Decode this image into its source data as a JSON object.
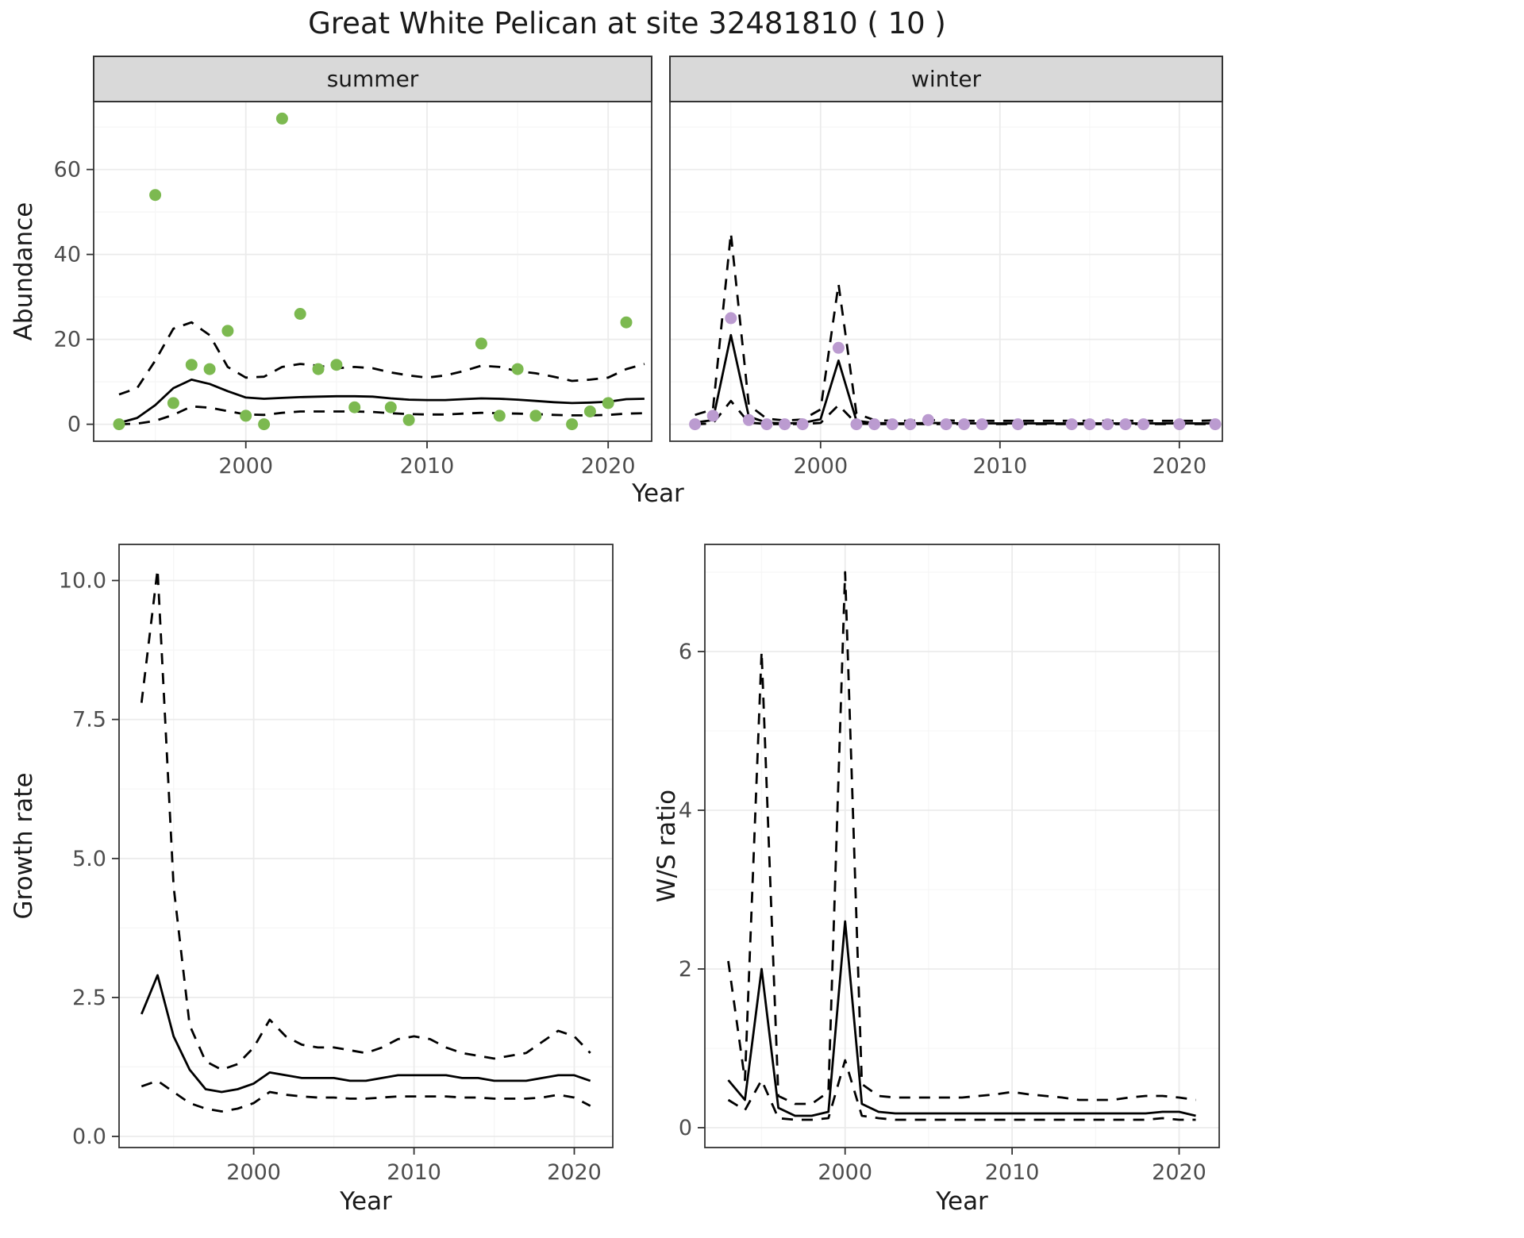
{
  "title": "Great White Pelican at site 32481810 ( 10 )",
  "colors": {
    "summer_point": "#7CB950",
    "winter_point": "#BB9BD0",
    "line": "#000000",
    "strip_bg": "#D9D9D9",
    "grid_major": "#EBEBEB",
    "grid_minor": "#F6F6F6",
    "panel_border": "#333333",
    "tick_label": "#4D4D4D",
    "text": "#1A1A1A"
  },
  "chart_data": [
    {
      "id": "abundance-summer",
      "type": "scatter",
      "facet_label": "summer",
      "xlabel": "Year",
      "ylabel": "Abundance",
      "xlim": [
        1991.6,
        2022.4
      ],
      "ylim": [
        -4,
        76
      ],
      "xticks": [
        2000,
        2010,
        2020
      ],
      "xtick_labels": [
        "2000",
        "2010",
        "2020"
      ],
      "yticks": [
        0,
        20,
        40,
        60
      ],
      "ytick_labels": [
        "0",
        "20",
        "40",
        "60"
      ],
      "xminor": [
        1995,
        2005,
        2015
      ],
      "yminor": [
        10,
        30,
        50,
        70
      ],
      "grid": true,
      "legend_position": "none",
      "points": {
        "color_key": "summer_point",
        "x": [
          1993,
          1995,
          1996,
          1997,
          1998,
          1999,
          2000,
          2001,
          2002,
          2003,
          2004,
          2005,
          2006,
          2008,
          2009,
          2013,
          2014,
          2015,
          2016,
          2018,
          2019,
          2020,
          2021
        ],
        "y": [
          0,
          54,
          5,
          14,
          13,
          22,
          2,
          0,
          72,
          26,
          13,
          14,
          4,
          4,
          1,
          19,
          2,
          13,
          2,
          0,
          3,
          5,
          24
        ]
      },
      "series_x": [
        1993,
        1994,
        1995,
        1996,
        1997,
        1998,
        1999,
        2000,
        2001,
        2002,
        2003,
        2004,
        2005,
        2006,
        2007,
        2008,
        2009,
        2010,
        2011,
        2012,
        2013,
        2014,
        2015,
        2016,
        2017,
        2018,
        2019,
        2020,
        2021,
        2022
      ],
      "series": [
        {
          "name": "fit",
          "linetype": "solid",
          "y": [
            0.3,
            1.5,
            4.5,
            8.5,
            10.5,
            9.5,
            7.8,
            6.3,
            6.0,
            6.2,
            6.4,
            6.5,
            6.6,
            6.6,
            6.5,
            6.1,
            5.8,
            5.7,
            5.7,
            5.9,
            6.1,
            6.0,
            5.8,
            5.5,
            5.2,
            5.0,
            5.1,
            5.3,
            5.9,
            6.0
          ]
        },
        {
          "name": "upper-ci",
          "linetype": "dashed",
          "y": [
            7.0,
            8.5,
            15.0,
            22.5,
            24.0,
            21.0,
            13.5,
            11.0,
            11.2,
            13.5,
            14.2,
            13.8,
            13.2,
            13.5,
            13.2,
            12.2,
            11.5,
            11.0,
            11.5,
            12.5,
            13.8,
            13.5,
            12.5,
            12.0,
            11.2,
            10.2,
            10.5,
            11.0,
            13.0,
            14.2
          ]
        },
        {
          "name": "lower-ci",
          "linetype": "dashed",
          "y": [
            0.0,
            0.15,
            0.8,
            2.2,
            4.2,
            3.9,
            3.1,
            2.3,
            2.2,
            2.7,
            3.0,
            3.0,
            3.0,
            3.0,
            2.9,
            2.6,
            2.4,
            2.3,
            2.3,
            2.5,
            2.7,
            2.6,
            2.5,
            2.4,
            2.2,
            2.1,
            2.1,
            2.2,
            2.5,
            2.6
          ]
        }
      ]
    },
    {
      "id": "abundance-winter",
      "type": "scatter",
      "facet_label": "winter",
      "xlabel": "Year",
      "ylabel": "Abundance",
      "xlim": [
        1991.6,
        2022.4
      ],
      "ylim": [
        -4,
        76
      ],
      "xticks": [
        2000,
        2010,
        2020
      ],
      "xtick_labels": [
        "2000",
        "2010",
        "2020"
      ],
      "yticks": [
        0,
        20,
        40,
        60
      ],
      "ytick_labels": [
        "0",
        "20",
        "40",
        "60"
      ],
      "xminor": [
        1995,
        2005,
        2015
      ],
      "yminor": [
        10,
        30,
        50,
        70
      ],
      "grid": true,
      "legend_position": "none",
      "points": {
        "color_key": "winter_point",
        "x": [
          1993,
          1994,
          1995,
          1996,
          1997,
          1998,
          1999,
          2001,
          2002,
          2003,
          2004,
          2005,
          2006,
          2007,
          2008,
          2009,
          2011,
          2014,
          2015,
          2016,
          2017,
          2018,
          2020,
          2022
        ],
        "y": [
          0,
          2,
          25,
          1,
          0,
          0,
          0,
          18,
          0,
          0,
          0,
          0,
          1,
          0,
          0,
          0,
          0,
          0,
          0,
          0,
          0,
          0,
          0,
          0
        ]
      },
      "series_x": [
        1993,
        1994,
        1995,
        1996,
        1997,
        1998,
        1999,
        2000,
        2001,
        2002,
        2003,
        2004,
        2005,
        2006,
        2007,
        2008,
        2009,
        2010,
        2011,
        2012,
        2013,
        2014,
        2015,
        2016,
        2017,
        2018,
        2019,
        2020,
        2021,
        2022
      ],
      "series": [
        {
          "name": "fit",
          "linetype": "solid",
          "y": [
            0.4,
            1.0,
            21.0,
            1.8,
            0.4,
            0.2,
            0.3,
            1.2,
            15.0,
            0.8,
            0.3,
            0.2,
            0.2,
            0.3,
            0.3,
            0.2,
            0.2,
            0.2,
            0.2,
            0.2,
            0.2,
            0.2,
            0.2,
            0.2,
            0.2,
            0.2,
            0.2,
            0.2,
            0.2,
            0.2
          ]
        },
        {
          "name": "upper-ci",
          "linetype": "dashed",
          "y": [
            2.2,
            3.5,
            45.0,
            4.5,
            1.3,
            0.9,
            1.1,
            3.5,
            33.0,
            2.5,
            1.0,
            0.8,
            0.8,
            1.0,
            0.9,
            0.8,
            0.8,
            0.8,
            0.8,
            0.8,
            0.8,
            0.8,
            0.8,
            0.8,
            0.8,
            0.8,
            0.8,
            0.8,
            0.8,
            0.9
          ]
        },
        {
          "name": "lower-ci",
          "linetype": "dashed",
          "y": [
            0.0,
            0.2,
            5.5,
            0.4,
            0.05,
            0.05,
            0.05,
            0.3,
            4.5,
            0.15,
            0.05,
            0.05,
            0.05,
            0.05,
            0.05,
            0.05,
            0.05,
            0.05,
            0.05,
            0.05,
            0.05,
            0.05,
            0.05,
            0.05,
            0.05,
            0.05,
            0.05,
            0.05,
            0.05,
            0.05
          ]
        }
      ]
    },
    {
      "id": "growth-rate",
      "type": "line",
      "facet_label": "",
      "xlabel": "Year",
      "ylabel": "Growth rate",
      "xlim": [
        1991.6,
        2022.4
      ],
      "ylim": [
        -0.2,
        10.65
      ],
      "xticks": [
        2000,
        2010,
        2020
      ],
      "xtick_labels": [
        "2000",
        "2010",
        "2020"
      ],
      "yticks": [
        0,
        2.5,
        5,
        7.5,
        10
      ],
      "ytick_labels": [
        "0.0",
        "2.5",
        "5.0",
        "7.5",
        "10.0"
      ],
      "xminor": [
        1995,
        2005,
        2015
      ],
      "yminor": [
        1.25,
        3.75,
        6.25,
        8.75
      ],
      "grid": true,
      "legend_position": "none",
      "series_x": [
        1993,
        1994,
        1995,
        1996,
        1997,
        1998,
        1999,
        2000,
        2001,
        2002,
        2003,
        2004,
        2005,
        2006,
        2007,
        2008,
        2009,
        2010,
        2011,
        2012,
        2013,
        2014,
        2015,
        2016,
        2017,
        2018,
        2019,
        2020,
        2021
      ],
      "series": [
        {
          "name": "fit",
          "linetype": "solid",
          "y": [
            2.2,
            2.9,
            1.8,
            1.2,
            0.85,
            0.8,
            0.85,
            0.95,
            1.15,
            1.1,
            1.05,
            1.05,
            1.05,
            1.0,
            1.0,
            1.05,
            1.1,
            1.1,
            1.1,
            1.1,
            1.05,
            1.05,
            1.0,
            1.0,
            1.0,
            1.05,
            1.1,
            1.1,
            1.0
          ]
        },
        {
          "name": "upper-ci",
          "linetype": "dashed",
          "y": [
            7.8,
            10.2,
            4.5,
            2.0,
            1.35,
            1.2,
            1.3,
            1.6,
            2.1,
            1.8,
            1.65,
            1.6,
            1.6,
            1.55,
            1.5,
            1.6,
            1.75,
            1.8,
            1.75,
            1.6,
            1.5,
            1.45,
            1.4,
            1.45,
            1.5,
            1.7,
            1.9,
            1.8,
            1.5
          ]
        },
        {
          "name": "lower-ci",
          "linetype": "dashed",
          "y": [
            0.9,
            1.0,
            0.8,
            0.6,
            0.5,
            0.45,
            0.5,
            0.6,
            0.8,
            0.75,
            0.72,
            0.7,
            0.7,
            0.68,
            0.68,
            0.7,
            0.72,
            0.72,
            0.72,
            0.72,
            0.7,
            0.7,
            0.68,
            0.68,
            0.68,
            0.7,
            0.75,
            0.7,
            0.55
          ]
        }
      ]
    },
    {
      "id": "ws-ratio",
      "type": "line",
      "facet_label": "",
      "xlabel": "Year",
      "ylabel": "W/S ratio",
      "xlim": [
        1991.6,
        2022.4
      ],
      "ylim": [
        -0.25,
        7.35
      ],
      "xticks": [
        2000,
        2010,
        2020
      ],
      "xtick_labels": [
        "2000",
        "2010",
        "2020"
      ],
      "yticks": [
        0,
        2,
        4,
        6
      ],
      "ytick_labels": [
        "0",
        "2",
        "4",
        "6"
      ],
      "xminor": [
        1995,
        2005,
        2015
      ],
      "yminor": [
        1,
        3,
        5,
        7
      ],
      "grid": true,
      "legend_position": "none",
      "series_x": [
        1993,
        1994,
        1995,
        1996,
        1997,
        1998,
        1999,
        2000,
        2001,
        2002,
        2003,
        2004,
        2005,
        2006,
        2007,
        2008,
        2009,
        2010,
        2011,
        2012,
        2013,
        2014,
        2015,
        2016,
        2017,
        2018,
        2019,
        2020,
        2021
      ],
      "series": [
        {
          "name": "fit",
          "linetype": "solid",
          "y": [
            0.6,
            0.35,
            2.0,
            0.25,
            0.15,
            0.15,
            0.2,
            2.6,
            0.3,
            0.2,
            0.18,
            0.18,
            0.18,
            0.18,
            0.18,
            0.18,
            0.18,
            0.18,
            0.18,
            0.18,
            0.18,
            0.18,
            0.18,
            0.18,
            0.18,
            0.18,
            0.2,
            0.2,
            0.15
          ]
        },
        {
          "name": "upper-ci",
          "linetype": "dashed",
          "y": [
            2.1,
            0.6,
            6.0,
            0.4,
            0.3,
            0.3,
            0.45,
            7.0,
            0.55,
            0.4,
            0.38,
            0.38,
            0.38,
            0.38,
            0.38,
            0.4,
            0.42,
            0.45,
            0.42,
            0.4,
            0.38,
            0.35,
            0.35,
            0.35,
            0.38,
            0.4,
            0.4,
            0.38,
            0.35
          ]
        },
        {
          "name": "lower-ci",
          "linetype": "dashed",
          "y": [
            0.35,
            0.22,
            0.6,
            0.12,
            0.1,
            0.1,
            0.12,
            0.85,
            0.15,
            0.12,
            0.1,
            0.1,
            0.1,
            0.1,
            0.1,
            0.1,
            0.1,
            0.1,
            0.1,
            0.1,
            0.1,
            0.1,
            0.1,
            0.1,
            0.1,
            0.1,
            0.12,
            0.1,
            0.1
          ]
        }
      ]
    }
  ]
}
